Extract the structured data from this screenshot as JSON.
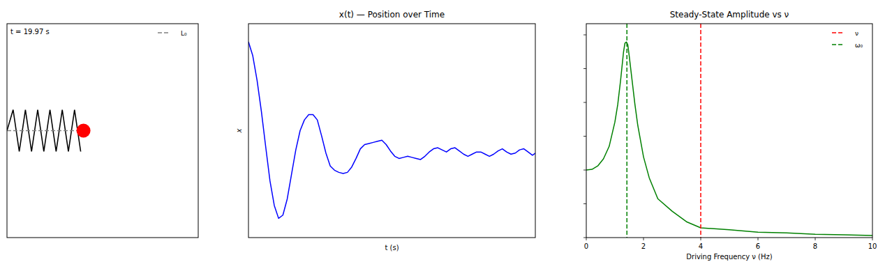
{
  "chart_data": [
    {
      "type": "spring",
      "annotation": "t = 19.97 s",
      "xlim": [
        0,
        1
      ],
      "ylim": [
        -1,
        1
      ],
      "mass_position": 0.4,
      "series": [
        {
          "name": "L₀",
          "color": "gray",
          "line_style": "dashed",
          "value": 0.39
        }
      ],
      "legend": "upper right",
      "tick_labels": false
    },
    {
      "type": "line",
      "title": "x(t) — Position over Time",
      "x_label": "t (s)",
      "y_label": "x",
      "xlim": [
        0,
        20
      ],
      "ylim": [
        -1,
        1
      ],
      "tick_labels": false,
      "x": [
        0,
        0.3,
        0.6,
        0.9,
        1.2,
        1.5,
        1.8,
        2.1,
        2.4,
        2.7,
        3,
        3.3,
        3.6,
        3.9,
        4.2,
        4.5,
        4.8,
        5.1,
        5.4,
        5.7,
        6,
        6.3,
        6.6,
        6.9,
        7.2,
        7.5,
        7.8,
        8.1,
        8.4,
        8.7,
        9,
        9.3,
        9.6,
        9.9,
        10.2,
        10.5,
        10.8,
        11.1,
        11.4,
        11.7,
        12,
        12.3,
        12.6,
        12.9,
        13.2,
        13.5,
        13.8,
        14.1,
        14.4,
        14.7,
        15,
        15.3,
        15.6,
        15.9,
        16.2,
        16.5,
        16.8,
        17.1,
        17.4,
        17.7,
        18,
        18.3,
        18.6,
        18.9,
        19.2,
        19.5,
        19.8,
        20
      ],
      "series": [
        {
          "color": "blue",
          "values": [
            0.83,
            0.7,
            0.47,
            0.18,
            -0.15,
            -0.47,
            -0.7,
            -0.82,
            -0.79,
            -0.64,
            -0.41,
            -0.18,
            0.0,
            0.1,
            0.15,
            0.15,
            0.1,
            -0.05,
            -0.21,
            -0.33,
            -0.37,
            -0.39,
            -0.4,
            -0.39,
            -0.34,
            -0.26,
            -0.17,
            -0.13,
            -0.12,
            -0.11,
            -0.1,
            -0.09,
            -0.13,
            -0.19,
            -0.24,
            -0.26,
            -0.25,
            -0.24,
            -0.25,
            -0.26,
            -0.27,
            -0.24,
            -0.2,
            -0.17,
            -0.16,
            -0.18,
            -0.2,
            -0.17,
            -0.16,
            -0.19,
            -0.22,
            -0.24,
            -0.22,
            -0.2,
            -0.2,
            -0.22,
            -0.24,
            -0.22,
            -0.19,
            -0.17,
            -0.2,
            -0.22,
            -0.21,
            -0.18,
            -0.17,
            -0.2,
            -0.23,
            -0.21
          ]
        }
      ]
    },
    {
      "type": "line",
      "title": "Steady-State Amplitude vs ν",
      "x_label": "Driving Frequency ν (Hz)",
      "xlim": [
        0,
        10
      ],
      "ylim": [
        0,
        6.33
      ],
      "xticks": [
        0,
        2,
        4,
        6,
        8,
        10
      ],
      "yticks": [
        0,
        1,
        2,
        3,
        4,
        5,
        6
      ],
      "tick_labels": "x",
      "legend": "upper right",
      "x": [
        0,
        0.2,
        0.4,
        0.6,
        0.8,
        1.0,
        1.1,
        1.2,
        1.3,
        1.35,
        1.4,
        1.45,
        1.5,
        1.6,
        1.7,
        1.8,
        2.0,
        2.2,
        2.5,
        3.0,
        3.5,
        4.0,
        5.0,
        6.0,
        7.0,
        8.0,
        9.0,
        10.0
      ],
      "series": [
        {
          "color": "green",
          "values": [
            2.0,
            2.02,
            2.12,
            2.33,
            2.7,
            3.42,
            3.94,
            4.66,
            5.48,
            5.75,
            5.79,
            5.71,
            5.38,
            4.66,
            3.94,
            3.32,
            2.39,
            1.77,
            1.15,
            0.78,
            0.47,
            0.29,
            0.23,
            0.16,
            0.14,
            0.1,
            0.08,
            0.06
          ]
        },
        {
          "name": "ν",
          "type": "vline",
          "x": 4.0,
          "color": "red",
          "line_style": "dashed"
        },
        {
          "name": "ω₀",
          "type": "vline",
          "x": 1.42,
          "color": "green",
          "line_style": "dashed"
        }
      ]
    }
  ]
}
